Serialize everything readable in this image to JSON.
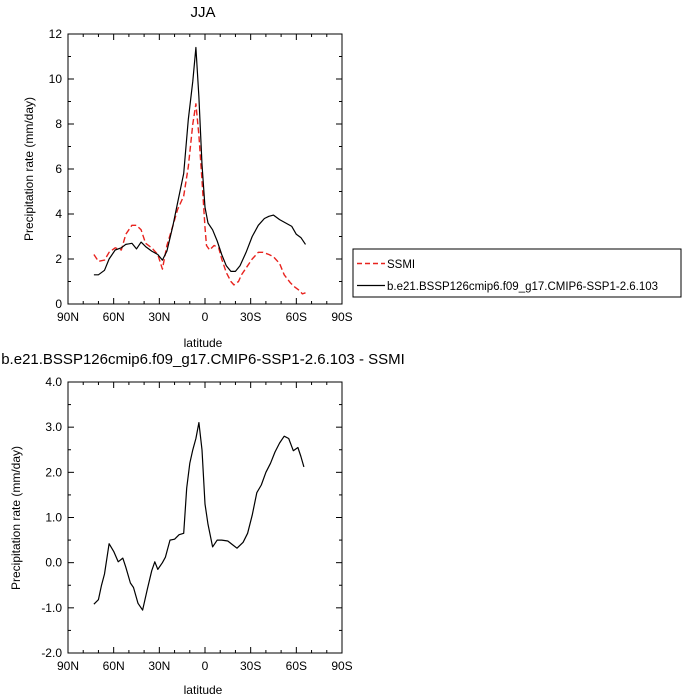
{
  "chart_data": [
    {
      "type": "line",
      "title": "JJA",
      "xlabel": "latitude",
      "ylabel": "Precipitation rate (mm/day)",
      "xlim": [
        90,
        -90
      ],
      "ylim": [
        0,
        12
      ],
      "x_ticks": [
        90,
        60,
        30,
        0,
        -30,
        -60,
        -90
      ],
      "x_tick_labels": [
        "90N",
        "60N",
        "30N",
        "0",
        "30S",
        "60S",
        "90S"
      ],
      "y_ticks": [
        0,
        2,
        4,
        6,
        8,
        10,
        12
      ],
      "y_tick_labels": [
        "0",
        "2",
        "4",
        "6",
        "8",
        "10",
        "12"
      ],
      "grid": false,
      "legend_position": "right-outside",
      "series": [
        {
          "name": "SSMI",
          "color": "#e8231e",
          "dash": "dashed",
          "points": [
            [
              73,
              2.2
            ],
            [
              70,
              1.9
            ],
            [
              66,
              1.95
            ],
            [
              63,
              2.3
            ],
            [
              59,
              2.5
            ],
            [
              55,
              2.4
            ],
            [
              52,
              3.1
            ],
            [
              48,
              3.5
            ],
            [
              45,
              3.5
            ],
            [
              42,
              3.3
            ],
            [
              39,
              2.7
            ],
            [
              35,
              2.5
            ],
            [
              31,
              2.2
            ],
            [
              28,
              1.55
            ],
            [
              25,
              2.6
            ],
            [
              21,
              3.5
            ],
            [
              18,
              4.2
            ],
            [
              14,
              4.8
            ],
            [
              11,
              6.1
            ],
            [
              8,
              8.0
            ],
            [
              6,
              8.9
            ],
            [
              4,
              7.5
            ],
            [
              2,
              5.5
            ],
            [
              0,
              3.4
            ],
            [
              -1,
              2.6
            ],
            [
              -3,
              2.4
            ],
            [
              -6,
              2.6
            ],
            [
              -9,
              2.5
            ],
            [
              -11,
              2.0
            ],
            [
              -14,
              1.4
            ],
            [
              -17,
              1.0
            ],
            [
              -19,
              0.85
            ],
            [
              -22,
              1.0
            ],
            [
              -24,
              1.3
            ],
            [
              -27,
              1.6
            ],
            [
              -31,
              2.0
            ],
            [
              -35,
              2.3
            ],
            [
              -38,
              2.3
            ],
            [
              -42,
              2.2
            ],
            [
              -45,
              2.1
            ],
            [
              -49,
              1.8
            ],
            [
              -52,
              1.3
            ],
            [
              -56,
              0.95
            ],
            [
              -59,
              0.75
            ],
            [
              -62,
              0.6
            ],
            [
              -64,
              0.45
            ],
            [
              -66,
              0.5
            ]
          ]
        },
        {
          "name": "b.e21.BSSP126cmip6.f09_g17.CMIP6-SSP1-2.6.103",
          "color": "#000000",
          "dash": "solid",
          "points": [
            [
              73,
              1.3
            ],
            [
              70,
              1.3
            ],
            [
              66,
              1.5
            ],
            [
              63,
              2.0
            ],
            [
              59,
              2.4
            ],
            [
              55,
              2.5
            ],
            [
              52,
              2.65
            ],
            [
              48,
              2.7
            ],
            [
              45,
              2.45
            ],
            [
              42,
              2.75
            ],
            [
              39,
              2.55
            ],
            [
              35,
              2.35
            ],
            [
              31,
              2.2
            ],
            [
              28,
              1.95
            ],
            [
              25,
              2.35
            ],
            [
              21,
              3.5
            ],
            [
              18,
              4.5
            ],
            [
              14,
              5.8
            ],
            [
              11,
              8.2
            ],
            [
              8,
              9.9
            ],
            [
              6,
              11.4
            ],
            [
              4,
              9.2
            ],
            [
              2,
              6.2
            ],
            [
              0,
              4.3
            ],
            [
              -2,
              3.6
            ],
            [
              -5,
              3.3
            ],
            [
              -8,
              2.8
            ],
            [
              -11,
              2.2
            ],
            [
              -14,
              1.7
            ],
            [
              -17,
              1.45
            ],
            [
              -20,
              1.45
            ],
            [
              -23,
              1.7
            ],
            [
              -27,
              2.3
            ],
            [
              -31,
              3.0
            ],
            [
              -35,
              3.5
            ],
            [
              -39,
              3.8
            ],
            [
              -42,
              3.9
            ],
            [
              -45,
              3.95
            ],
            [
              -49,
              3.75
            ],
            [
              -53,
              3.6
            ],
            [
              -57,
              3.45
            ],
            [
              -60,
              3.1
            ],
            [
              -63,
              2.95
            ],
            [
              -66,
              2.65
            ]
          ]
        }
      ]
    },
    {
      "type": "line",
      "title": "b.e21.BSSP126cmip6.f09_g17.CMIP6-SSP1-2.6.103 - SSMI",
      "xlabel": "latitude",
      "ylabel": "Precipitation rate (mm/day)",
      "xlim": [
        90,
        -90
      ],
      "ylim": [
        -2,
        4
      ],
      "x_ticks": [
        90,
        60,
        30,
        0,
        -30,
        -60,
        -90
      ],
      "x_tick_labels": [
        "90N",
        "60N",
        "30N",
        "0",
        "30S",
        "60S",
        "90S"
      ],
      "y_ticks": [
        -2,
        -1,
        0,
        1,
        2,
        3,
        4
      ],
      "y_tick_labels": [
        "-2.0",
        "-1.0",
        "0.0",
        "1.0",
        "2.0",
        "3.0",
        "4.0"
      ],
      "grid": false,
      "series": [
        {
          "color": "#000000",
          "dash": "solid",
          "points": [
            [
              73,
              -0.92
            ],
            [
              70,
              -0.82
            ],
            [
              68,
              -0.5
            ],
            [
              66,
              -0.25
            ],
            [
              63,
              0.42
            ],
            [
              60,
              0.25
            ],
            [
              57,
              0.02
            ],
            [
              54,
              0.1
            ],
            [
              52,
              -0.1
            ],
            [
              49,
              -0.45
            ],
            [
              47,
              -0.55
            ],
            [
              44,
              -0.9
            ],
            [
              41,
              -1.05
            ],
            [
              38,
              -0.6
            ],
            [
              35,
              -0.18
            ],
            [
              33,
              0.02
            ],
            [
              31,
              -0.15
            ],
            [
              28,
              0.0
            ],
            [
              26,
              0.12
            ],
            [
              23,
              0.5
            ],
            [
              20,
              0.52
            ],
            [
              17,
              0.62
            ],
            [
              14,
              0.65
            ],
            [
              12,
              1.65
            ],
            [
              10,
              2.2
            ],
            [
              8,
              2.5
            ],
            [
              6,
              2.75
            ],
            [
              4,
              3.1
            ],
            [
              2,
              2.5
            ],
            [
              0,
              1.3
            ],
            [
              -2,
              0.85
            ],
            [
              -5,
              0.35
            ],
            [
              -8,
              0.5
            ],
            [
              -11,
              0.5
            ],
            [
              -15,
              0.48
            ],
            [
              -18,
              0.4
            ],
            [
              -21,
              0.32
            ],
            [
              -25,
              0.45
            ],
            [
              -28,
              0.65
            ],
            [
              -31,
              1.05
            ],
            [
              -34,
              1.55
            ],
            [
              -37,
              1.72
            ],
            [
              -40,
              2.0
            ],
            [
              -43,
              2.2
            ],
            [
              -46,
              2.45
            ],
            [
              -49,
              2.65
            ],
            [
              -52,
              2.8
            ],
            [
              -55,
              2.75
            ],
            [
              -58,
              2.48
            ],
            [
              -61,
              2.55
            ],
            [
              -63,
              2.35
            ],
            [
              -65,
              2.12
            ]
          ]
        }
      ]
    }
  ]
}
